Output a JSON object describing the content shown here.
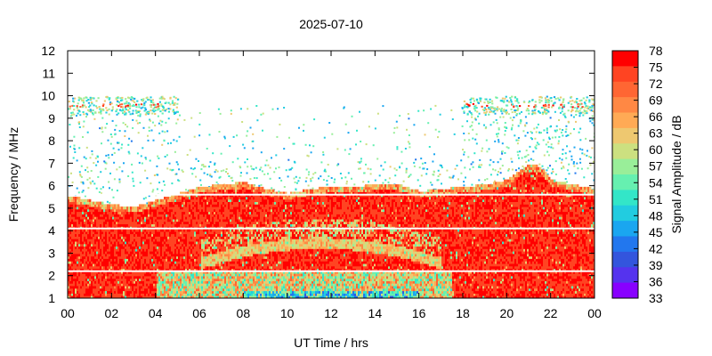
{
  "chart_data": {
    "type": "heatmap",
    "title": "2025-07-10",
    "xlabel": "UT Time / hrs",
    "ylabel": "Frequency / MHz",
    "colorbar_label": "Signal Amplitude / dB",
    "x_range": [
      0,
      24
    ],
    "x_ticks": [
      "00",
      "02",
      "04",
      "06",
      "08",
      "10",
      "12",
      "14",
      "16",
      "18",
      "20",
      "22",
      "00"
    ],
    "y_range": [
      1,
      12
    ],
    "y_ticks": [
      "1",
      "2",
      "3",
      "4",
      "5",
      "6",
      "7",
      "8",
      "9",
      "10",
      "11",
      "12"
    ],
    "colorbar_range": [
      33,
      78
    ],
    "colorbar_ticks": [
      "78",
      "75",
      "72",
      "69",
      "66",
      "63",
      "60",
      "57",
      "54",
      "51",
      "48",
      "45",
      "42",
      "39",
      "36",
      "33"
    ],
    "colorbar_colors": [
      "#ff0000",
      "#ff4422",
      "#ff6633",
      "#ff8844",
      "#ffaa55",
      "#eec870",
      "#cce080",
      "#99ee99",
      "#66f0b0",
      "#33e6c8",
      "#22cce0",
      "#1aa6f0",
      "#2277ee",
      "#3355dd",
      "#5533ee",
      "#8800ff"
    ],
    "red_band_upper_mhz": [
      [
        0,
        5.5
      ],
      [
        1,
        5.3
      ],
      [
        2,
        5.1
      ],
      [
        3,
        5.0
      ],
      [
        4,
        5.3
      ],
      [
        5,
        5.6
      ],
      [
        6,
        5.9
      ],
      [
        7,
        6.0
      ],
      [
        8,
        6.1
      ],
      [
        9,
        5.8
      ],
      [
        10,
        5.6
      ],
      [
        11,
        5.8
      ],
      [
        12,
        5.9
      ],
      [
        13,
        5.9
      ],
      [
        14,
        6.0
      ],
      [
        15,
        6.0
      ],
      [
        16,
        5.7
      ],
      [
        17,
        5.8
      ],
      [
        18,
        5.9
      ],
      [
        19,
        6.0
      ],
      [
        20,
        6.2
      ],
      [
        20.5,
        6.6
      ],
      [
        21,
        6.9
      ],
      [
        21.5,
        6.8
      ],
      [
        22,
        6.2
      ],
      [
        23,
        6.0
      ],
      [
        24,
        5.8
      ]
    ],
    "red_band_lower_mhz": 1.3,
    "scatter_upper_mhz": 9.6,
    "dense_upper_band": {
      "time_ranges": [
        [
          0,
          5
        ],
        [
          18,
          24
        ]
      ],
      "freq_range_mhz": [
        9.2,
        10.0
      ]
    },
    "gap_lines_mhz": [
      2.2,
      4.1,
      5.6
    ],
    "inner_feature": {
      "time_range": [
        6,
        17
      ],
      "freq_min_mhz": 2.5,
      "freq_max_mhz": 3.4,
      "peak_time": 11.5
    }
  }
}
